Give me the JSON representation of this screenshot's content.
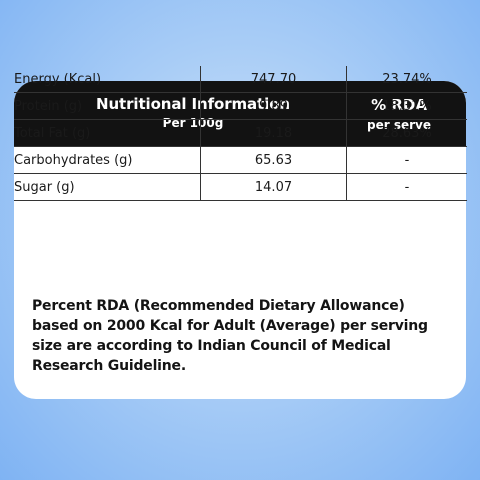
{
  "header": {
    "title": "Nutritional Information",
    "subtitle": "Per 100g",
    "rda_title": "% RDA",
    "rda_subtitle": "per serve"
  },
  "rows": [
    {
      "name": "Energy (Kcal)",
      "value": "747.70",
      "rda": "23.74%"
    },
    {
      "name": "Protein (g)",
      "value": "9.89",
      "rda": "18.31%"
    },
    {
      "name": "Total Fat (g)",
      "value": "19.18",
      "rda": "28.63%"
    },
    {
      "name": "Carbohydrates (g)",
      "value": "65.63",
      "rda": "-"
    },
    {
      "name": "Sugar (g)",
      "value": "14.07",
      "rda": "-"
    }
  ],
  "footnote": {
    "lines": [
      "Percent RDA (Recommended Dietary Allowance)",
      "based on 2000 Kcal for Adult (Average) per serving",
      "size are according to Indian Council of Medical",
      "Research Guideline."
    ]
  },
  "colors": {
    "header_bg": "#121212",
    "card_bg": "#ffffff",
    "background": "#a9cdf6"
  }
}
